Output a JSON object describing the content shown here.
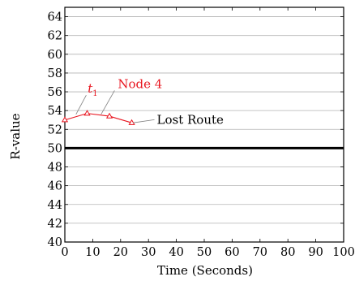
{
  "chart_data": {
    "type": "line",
    "xlabel": "Time (Seconds)",
    "ylabel": "R-value",
    "xlim": [
      0,
      100
    ],
    "ylim": [
      40,
      65
    ],
    "xticks": [
      0,
      10,
      20,
      30,
      40,
      50,
      60,
      70,
      80,
      90,
      100
    ],
    "yticks": [
      40,
      42,
      44,
      46,
      48,
      50,
      52,
      54,
      56,
      58,
      60,
      62,
      64
    ],
    "grid": "horizontal",
    "threshold": 50,
    "series": [
      {
        "color": "#e8141e",
        "marker": "triangle",
        "x": [
          0,
          8,
          16,
          24
        ],
        "y": [
          53.0,
          53.7,
          53.4,
          52.7
        ]
      }
    ],
    "annotations": [
      {
        "label": "t",
        "subscript": "1",
        "point": [
          4,
          53.6
        ],
        "text_at": [
          10,
          55.9
        ],
        "color": "#e8141e"
      },
      {
        "label": "Node 4",
        "point": [
          13,
          53.6
        ],
        "text_at": [
          19,
          56.4
        ],
        "color": "#e8141e"
      },
      {
        "label": "Lost Route",
        "point": [
          24.5,
          52.7
        ],
        "text_at": [
          33,
          52.6
        ],
        "color": "#000000"
      }
    ]
  }
}
